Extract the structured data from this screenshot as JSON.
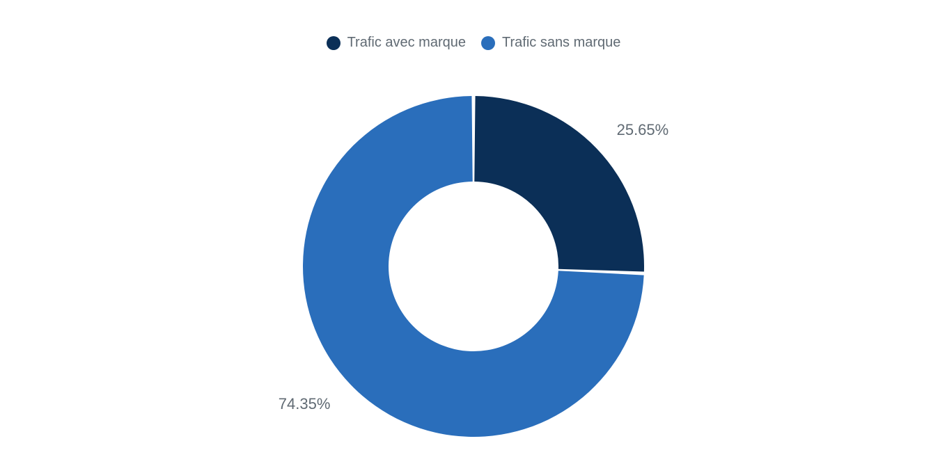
{
  "chart": {
    "type": "donut",
    "background_color": "#ffffff",
    "slice_gap_deg": 1.2,
    "outer_radius": 245,
    "inner_radius": 122,
    "legend": {
      "position": "top-center",
      "fontsize": 20,
      "text_color": "#606a73",
      "swatch_shape": "circle",
      "swatch_size": 20
    },
    "value_labels": {
      "fontsize": 22,
      "text_color": "#606a73",
      "format": "{v}%"
    },
    "slices": [
      {
        "label": "Trafic avec marque",
        "value": 25.65,
        "color": "#0b2f57",
        "value_text": "25.65%"
      },
      {
        "label": "Trafic sans marque",
        "value": 74.35,
        "color": "#2a6ebb",
        "value_text": "74.35%"
      }
    ]
  }
}
